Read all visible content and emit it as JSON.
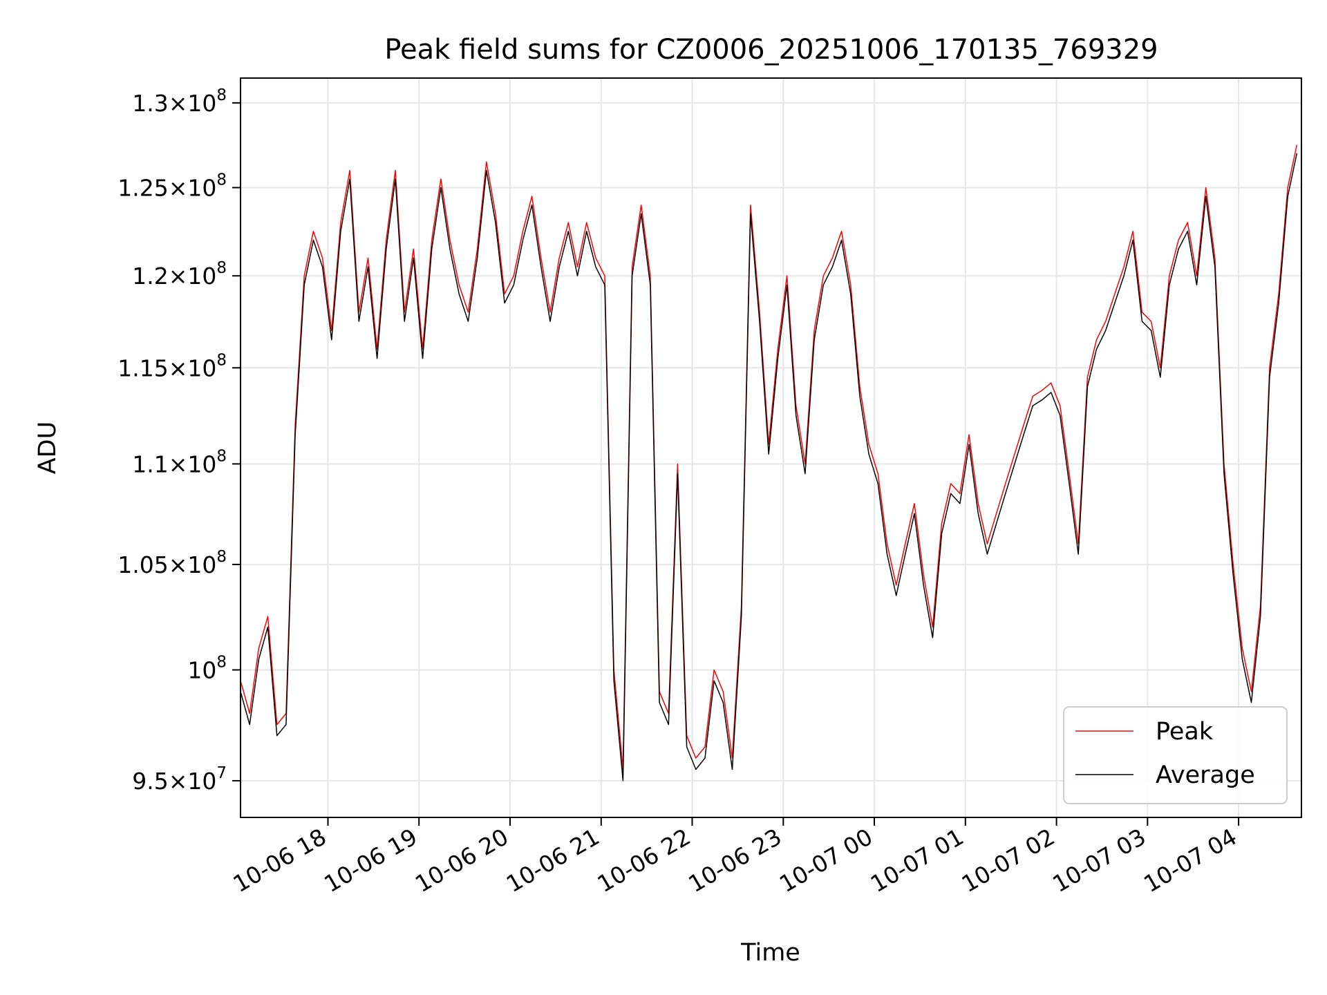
{
  "chart_data": {
    "type": "line",
    "title": "Peak field sums for CZ0006_20251006_170135_769329",
    "xlabel": "Time",
    "ylabel": "ADU",
    "yscale": "log",
    "grid": true,
    "legend_position": "lower-right",
    "xlim_hours_from_start": [
      0,
      11.65
    ],
    "ylim": [
      93400000,
      131500000
    ],
    "x_ticks": [
      {
        "label": "10-06 18",
        "hours": 0.96
      },
      {
        "label": "10-06 19",
        "hours": 1.96
      },
      {
        "label": "10-06 20",
        "hours": 2.96
      },
      {
        "label": "10-06 21",
        "hours": 3.96
      },
      {
        "label": "10-06 22",
        "hours": 4.96
      },
      {
        "label": "10-06 23",
        "hours": 5.96
      },
      {
        "label": "10-07 00",
        "hours": 6.96
      },
      {
        "label": "10-07 01",
        "hours": 7.96
      },
      {
        "label": "10-07 02",
        "hours": 8.96
      },
      {
        "label": "10-07 03",
        "hours": 9.96
      },
      {
        "label": "10-07 04",
        "hours": 10.96
      }
    ],
    "y_ticks": [
      {
        "mant": "9.5",
        "exp": "7",
        "value": 95000000
      },
      {
        "mant": "",
        "exp": "8",
        "value": 100000000
      },
      {
        "mant": "1.05",
        "exp": "8",
        "value": 105000000
      },
      {
        "mant": "1.1",
        "exp": "8",
        "value": 110000000
      },
      {
        "mant": "1.15",
        "exp": "8",
        "value": 115000000
      },
      {
        "mant": "1.2",
        "exp": "8",
        "value": 120000000
      },
      {
        "mant": "1.25",
        "exp": "8",
        "value": 125000000
      },
      {
        "mant": "1.3",
        "exp": "8",
        "value": 130000000
      }
    ],
    "x_hours": [
      0,
      0.1,
      0.2,
      0.3,
      0.4,
      0.5,
      0.6,
      0.7,
      0.8,
      0.9,
      1.0,
      1.1,
      1.2,
      1.3,
      1.4,
      1.5,
      1.6,
      1.7,
      1.8,
      1.9,
      2.0,
      2.1,
      2.2,
      2.3,
      2.4,
      2.5,
      2.6,
      2.7,
      2.8,
      2.9,
      3.0,
      3.1,
      3.2,
      3.3,
      3.4,
      3.5,
      3.6,
      3.7,
      3.8,
      3.9,
      4.0,
      4.1,
      4.2,
      4.3,
      4.4,
      4.5,
      4.6,
      4.7,
      4.8,
      4.9,
      5.0,
      5.1,
      5.2,
      5.3,
      5.4,
      5.5,
      5.6,
      5.7,
      5.8,
      5.9,
      6.0,
      6.1,
      6.2,
      6.3,
      6.4,
      6.5,
      6.6,
      6.7,
      6.8,
      6.9,
      7.0,
      7.1,
      7.2,
      7.3,
      7.4,
      7.5,
      7.6,
      7.7,
      7.8,
      7.9,
      8.0,
      8.1,
      8.2,
      8.3,
      8.4,
      8.5,
      8.6,
      8.7,
      8.8,
      8.9,
      9.0,
      9.1,
      9.2,
      9.3,
      9.4,
      9.5,
      9.6,
      9.7,
      9.8,
      9.9,
      10.0,
      10.1,
      10.2,
      10.3,
      10.4,
      10.5,
      10.6,
      10.7,
      10.8,
      10.9,
      11.0,
      11.1,
      11.2,
      11.3,
      11.4,
      11.5,
      11.6
    ],
    "series": [
      {
        "name": "Peak",
        "color": "#ff0000",
        "values": [
          99.5,
          98,
          101,
          102.5,
          97.5,
          98,
          112,
          120,
          122.5,
          121,
          117,
          123,
          126,
          118,
          121,
          116,
          122,
          126,
          118,
          121.5,
          116,
          122,
          125.5,
          122,
          119.5,
          118,
          121.5,
          126.5,
          123.5,
          119,
          120,
          122.5,
          124.5,
          121,
          118,
          121,
          123,
          120.5,
          123,
          121,
          120,
          100,
          95.5,
          120.5,
          124,
          120,
          99,
          98,
          110,
          97,
          96,
          96.5,
          100,
          99,
          96,
          103,
          124,
          118,
          111,
          116,
          120,
          113,
          110,
          117,
          120,
          121,
          122.5,
          119.5,
          114,
          111,
          109.5,
          106,
          104,
          106,
          108,
          104.5,
          102,
          107,
          109,
          108.5,
          111.5,
          108,
          106,
          107.5,
          109,
          110.5,
          112,
          113.5,
          113.8,
          114.2,
          113,
          109.5,
          106,
          114.5,
          116.5,
          117.5,
          119,
          120.5,
          122.5,
          118,
          117.5,
          115,
          120,
          122,
          123,
          120,
          125,
          121,
          110,
          105,
          101,
          99,
          103,
          115,
          119,
          125,
          127.5
        ]
      },
      {
        "name": "Average",
        "color": "#000000",
        "values": [
          99,
          97.5,
          100.5,
          102,
          97,
          97.5,
          111.5,
          119.5,
          122,
          120.5,
          116.5,
          122.5,
          125.5,
          117.5,
          120.5,
          115.5,
          121.5,
          125.5,
          117.5,
          121,
          115.5,
          121.5,
          125,
          121.5,
          119,
          117.5,
          121,
          126,
          123,
          118.5,
          119.5,
          122,
          124,
          120.5,
          117.5,
          120.5,
          122.5,
          120,
          122.5,
          120.5,
          119.5,
          99.5,
          95,
          120,
          123.5,
          119.5,
          98.5,
          97.5,
          109.5,
          96.5,
          95.5,
          96,
          99.5,
          98.5,
          95.5,
          102.5,
          123.5,
          117.5,
          110.5,
          115.5,
          119.5,
          112.5,
          109.5,
          116.5,
          119.5,
          120.5,
          122,
          119,
          113.5,
          110.5,
          109,
          105.5,
          103.5,
          105.5,
          107.5,
          104,
          101.5,
          106.5,
          108.5,
          108,
          111,
          107.5,
          105.5,
          107,
          108.5,
          110,
          111.5,
          113,
          113.3,
          113.7,
          112.5,
          109,
          105.5,
          114,
          116,
          117,
          118.5,
          120,
          122,
          117.5,
          117,
          114.5,
          119.5,
          121.5,
          122.5,
          119.5,
          124.5,
          120.5,
          109.5,
          104.5,
          100.5,
          98.5,
          102.5,
          114.5,
          118.5,
          124.5,
          127
        ]
      }
    ],
    "values_unit": "millions of ADU"
  }
}
